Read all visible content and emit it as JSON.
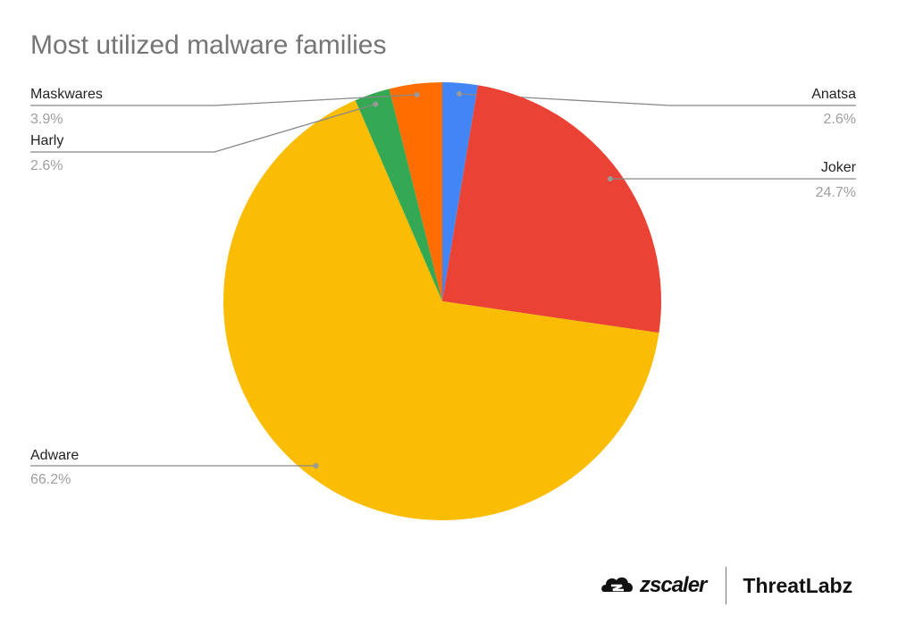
{
  "chart_data": {
    "type": "pie",
    "title": "Most utilized malware families",
    "slices": [
      {
        "name": "Anatsa",
        "value": 2.6,
        "label": "2.6%",
        "color": "#4285F4"
      },
      {
        "name": "Joker",
        "value": 24.7,
        "label": "24.7%",
        "color": "#EA4335"
      },
      {
        "name": "Adware",
        "value": 66.2,
        "label": "66.2%",
        "color": "#FBBC04"
      },
      {
        "name": "Harly",
        "value": 2.6,
        "label": "2.6%",
        "color": "#34A853"
      },
      {
        "name": "Maskwares",
        "value": 3.9,
        "label": "3.9%",
        "color": "#FF6D01"
      }
    ],
    "start_angle": "top, clockwise",
    "legend": "labels with leader lines"
  },
  "branding": {
    "logo_zscaler": "zscaler",
    "logo_threatlabz": "ThreatLabz"
  }
}
